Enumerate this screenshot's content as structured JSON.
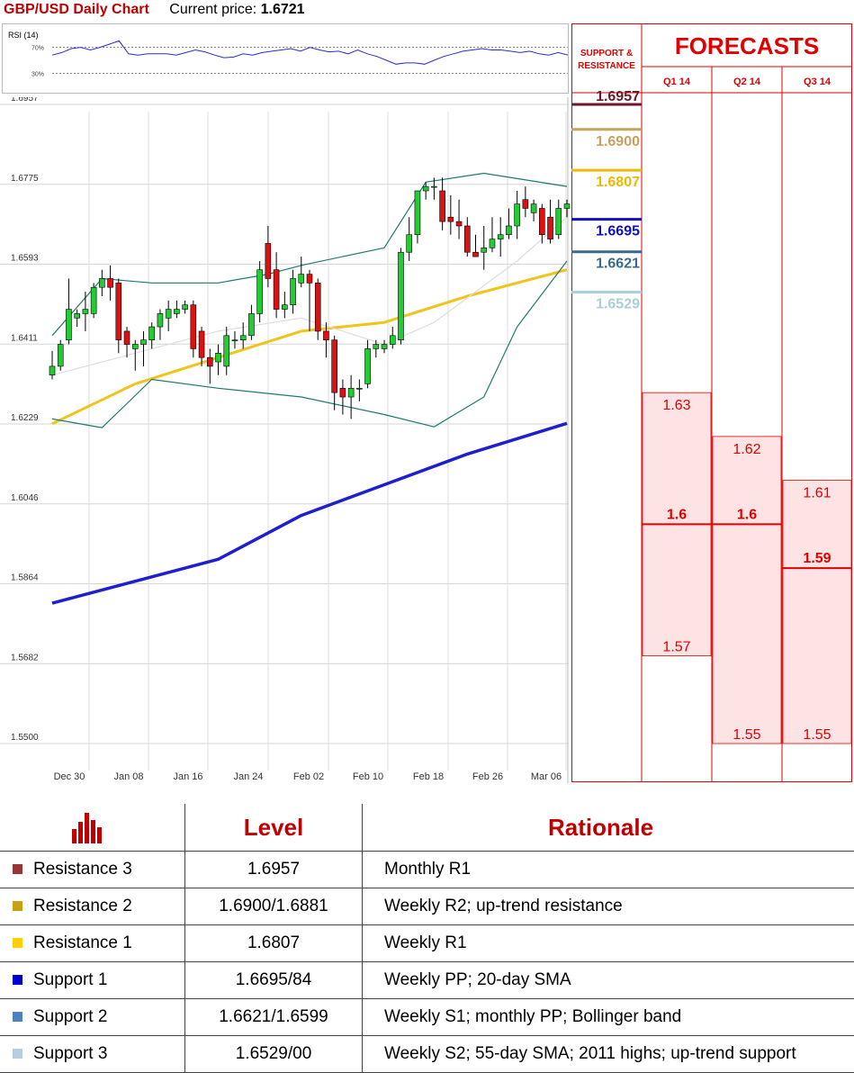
{
  "header": {
    "title": "GBP/USD Daily Chart",
    "current_label": "Current price:",
    "current_value": "1.6721"
  },
  "chart_data": [
    {
      "type": "line",
      "title": "RSI (14)",
      "yticks": [
        "70%",
        "30%"
      ],
      "ylim": [
        0,
        100
      ],
      "x": [
        0,
        1,
        2,
        3,
        4,
        5,
        6,
        7,
        8,
        9,
        10,
        11,
        12,
        13,
        14,
        15,
        16,
        17,
        18,
        19,
        20,
        21,
        22,
        23,
        24,
        25,
        26,
        27,
        28,
        29,
        30,
        31,
        32,
        33,
        34,
        35,
        36,
        37,
        38,
        39,
        40,
        41,
        42,
        43,
        44,
        45,
        46,
        47,
        48,
        49,
        50,
        51,
        52,
        53,
        54
      ],
      "series": [
        {
          "values": [
            58,
            62,
            68,
            70,
            66,
            70,
            75,
            80,
            60,
            58,
            60,
            60,
            60,
            58,
            62,
            66,
            63,
            58,
            54,
            55,
            60,
            58,
            62,
            64,
            66,
            68,
            64,
            70,
            66,
            63,
            64,
            60,
            66,
            60,
            56,
            50,
            44,
            46,
            46,
            44,
            50,
            56,
            60,
            64,
            66,
            68,
            66,
            66,
            64,
            62,
            64,
            60,
            58,
            62,
            58
          ]
        }
      ]
    },
    {
      "type": "candlestick",
      "title": "GBP/USD Daily Chart",
      "x_ticks": [
        "Dec 30",
        "Jan 08",
        "Jan 16",
        "Jan 24",
        "Feb 02",
        "Feb 10",
        "Feb 18",
        "Feb 26",
        "Mar 06"
      ],
      "y_ticks": [
        "1.6957",
        "1.6775",
        "1.6593",
        "1.6411",
        "1.6229",
        "1.6046",
        "1.5864",
        "1.5682",
        "1.5500"
      ],
      "ylim": [
        1.55,
        1.6957
      ],
      "candles": [
        [
          1.634,
          1.6395,
          1.636,
          1.633
        ],
        [
          1.636,
          1.642,
          1.641,
          1.635
        ],
        [
          1.642,
          1.656,
          1.649,
          1.641
        ],
        [
          1.647,
          1.649,
          1.648,
          1.645
        ],
        [
          1.648,
          1.653,
          1.649,
          1.644
        ],
        [
          1.648,
          1.655,
          1.654,
          1.647
        ],
        [
          1.654,
          1.658,
          1.656,
          1.652
        ],
        [
          1.656,
          1.659,
          1.654,
          1.651
        ],
        [
          1.655,
          1.656,
          1.642,
          1.639
        ],
        [
          1.644,
          1.645,
          1.641,
          1.638
        ],
        [
          1.64,
          1.642,
          1.641,
          1.635
        ],
        [
          1.641,
          1.644,
          1.642,
          1.636
        ],
        [
          1.642,
          1.646,
          1.645,
          1.64
        ],
        [
          1.645,
          1.649,
          1.648,
          1.642
        ],
        [
          1.647,
          1.651,
          1.649,
          1.644
        ],
        [
          1.648,
          1.651,
          1.649,
          1.647
        ],
        [
          1.649,
          1.651,
          1.65,
          1.648
        ],
        [
          1.65,
          1.651,
          1.64,
          1.638
        ],
        [
          1.644,
          1.645,
          1.638,
          1.636
        ],
        [
          1.638,
          1.64,
          1.636,
          1.632
        ],
        [
          1.637,
          1.641,
          1.639,
          1.634
        ],
        [
          1.636,
          1.645,
          1.643,
          1.634
        ],
        [
          1.642,
          1.644,
          1.642,
          1.64
        ],
        [
          1.642,
          1.646,
          1.643,
          1.64
        ],
        [
          1.643,
          1.65,
          1.648,
          1.642
        ],
        [
          1.648,
          1.66,
          1.658,
          1.646
        ],
        [
          1.664,
          1.668,
          1.656,
          1.654
        ],
        [
          1.658,
          1.662,
          1.649,
          1.647
        ],
        [
          1.649,
          1.653,
          1.65,
          1.647
        ],
        [
          1.65,
          1.658,
          1.656,
          1.648
        ],
        [
          1.655,
          1.661,
          1.657,
          1.654
        ],
        [
          1.657,
          1.658,
          1.655,
          1.644
        ],
        [
          1.655,
          1.656,
          1.644,
          1.642
        ],
        [
          1.644,
          1.646,
          1.642,
          1.638
        ],
        [
          1.642,
          1.643,
          1.63,
          1.626
        ],
        [
          1.631,
          1.633,
          1.629,
          1.625
        ],
        [
          1.629,
          1.634,
          1.631,
          1.624
        ],
        [
          1.631,
          1.633,
          1.631,
          1.628
        ],
        [
          1.632,
          1.642,
          1.64,
          1.631
        ],
        [
          1.64,
          1.642,
          1.641,
          1.638
        ],
        [
          1.64,
          1.642,
          1.641,
          1.639
        ],
        [
          1.641,
          1.645,
          1.643,
          1.64
        ],
        [
          1.642,
          1.663,
          1.662,
          1.641
        ],
        [
          1.662,
          1.67,
          1.666,
          1.66
        ],
        [
          1.666,
          1.676,
          1.676,
          1.664
        ],
        [
          1.676,
          1.678,
          1.677,
          1.674
        ],
        [
          1.677,
          1.679,
          1.677,
          1.674
        ],
        [
          1.676,
          1.679,
          1.669,
          1.667
        ],
        [
          1.67,
          1.675,
          1.669,
          1.666
        ],
        [
          1.669,
          1.674,
          1.668,
          1.665
        ],
        [
          1.668,
          1.67,
          1.662,
          1.661
        ],
        [
          1.662,
          1.666,
          1.661,
          1.661
        ],
        [
          1.662,
          1.668,
          1.663,
          1.658
        ],
        [
          1.663,
          1.67,
          1.665,
          1.662
        ],
        [
          1.665,
          1.67,
          1.666,
          1.661
        ],
        [
          1.666,
          1.672,
          1.668,
          1.665
        ],
        [
          1.668,
          1.676,
          1.673,
          1.665
        ],
        [
          1.674,
          1.677,
          1.672,
          1.67
        ],
        [
          1.671,
          1.674,
          1.673,
          1.669
        ],
        [
          1.672,
          1.673,
          1.666,
          1.664
        ],
        [
          1.67,
          1.674,
          1.665,
          1.664
        ],
        [
          1.666,
          1.674,
          1.672,
          1.665
        ],
        [
          1.672,
          1.674,
          1.673,
          1.67
        ]
      ],
      "series": [
        {
          "name": "",
          "color": "#f0c419",
          "values": [
            [
              0,
              1.6229
            ],
            [
              10,
              1.632
            ],
            [
              20,
              1.638
            ],
            [
              30,
              1.644
            ],
            [
              40,
              1.646
            ],
            [
              50,
              1.652
            ],
            [
              62,
              1.658
            ]
          ]
        },
        {
          "name": "",
          "color": "#1f1fcf",
          "values": [
            [
              0,
              1.582
            ],
            [
              10,
              1.587
            ],
            [
              20,
              1.592
            ],
            [
              30,
              1.602
            ],
            [
              40,
              1.609
            ],
            [
              50,
              1.616
            ],
            [
              62,
              1.623
            ]
          ]
        },
        {
          "name": "",
          "color": "#1f7a6f",
          "values": [
            [
              0,
              1.624
            ],
            [
              6,
              1.622
            ],
            [
              12,
              1.633
            ],
            [
              20,
              1.631
            ],
            [
              30,
              1.629
            ],
            [
              40,
              1.625
            ],
            [
              46,
              1.6222
            ],
            [
              52,
              1.629
            ],
            [
              56,
              1.645
            ],
            [
              62,
              1.66
            ]
          ]
        },
        {
          "name": "",
          "color": "#1f7a6f",
          "values": [
            [
              0,
              1.643
            ],
            [
              6,
              1.656
            ],
            [
              12,
              1.655
            ],
            [
              20,
              1.655
            ],
            [
              26,
              1.657
            ],
            [
              30,
              1.659
            ],
            [
              40,
              1.663
            ],
            [
              45,
              1.678
            ],
            [
              52,
              1.68
            ],
            [
              62,
              1.677
            ]
          ]
        },
        {
          "name": "",
          "color": "#dddddd",
          "values": [
            [
              0,
              1.634
            ],
            [
              10,
              1.639
            ],
            [
              20,
              1.644
            ],
            [
              30,
              1.647
            ],
            [
              40,
              1.641
            ],
            [
              46,
              1.646
            ],
            [
              56,
              1.66
            ],
            [
              62,
              1.67
            ]
          ]
        }
      ]
    }
  ],
  "levels_panel": {
    "header": "SUPPORT & RESISTANCE",
    "items": [
      {
        "label": "1.6957",
        "value": 1.6957,
        "color": "#6b1a2a"
      },
      {
        "label": "1.6900",
        "value": 1.69,
        "color": "#c8a060"
      },
      {
        "label": "1.6807",
        "value": 1.6807,
        "color": "#f0b800"
      },
      {
        "label": "1.6695",
        "value": 1.6695,
        "color": "#1010c0"
      },
      {
        "label": "1.6621",
        "value": 1.6621,
        "color": "#3a6a8a"
      },
      {
        "label": "1.6529",
        "value": 1.6529,
        "color": "#a9cfd8"
      }
    ]
  },
  "forecasts": {
    "title": "FORECASTS",
    "columns": [
      {
        "label": "Q1 14",
        "high": "1.63",
        "mid": "1.6",
        "low": "1.57",
        "high_v": 1.63,
        "mid_v": 1.6,
        "low_v": 1.57
      },
      {
        "label": "Q2 14",
        "high": "1.62",
        "mid": "1.6",
        "low": "1.55",
        "high_v": 1.62,
        "mid_v": 1.6,
        "low_v": 1.55
      },
      {
        "label": "Q3 14",
        "high": "1.61",
        "mid": "1.59",
        "low": "1.55",
        "high_v": 1.61,
        "mid_v": 1.59,
        "low_v": 1.55
      }
    ]
  },
  "table": {
    "headers": [
      "Level",
      "Rationale"
    ],
    "rows": [
      {
        "name": "Resistance 3",
        "color": "#953735",
        "level": "1.6957",
        "rationale": "Monthly R1"
      },
      {
        "name": "Resistance 2",
        "color": "#c9a012",
        "level": "1.6900/1.6881",
        "rationale": "Weekly R2; up-trend resistance"
      },
      {
        "name": "Resistance 1",
        "color": "#ffd000",
        "level": "1.6807",
        "rationale": "Weekly R1"
      },
      {
        "name": "Support 1",
        "color": "#0000cc",
        "level": "1.6695/84",
        "rationale": "Weekly PP; 20-day SMA"
      },
      {
        "name": "Support 2",
        "color": "#4f81bd",
        "level": "1.6621/1.6599",
        "rationale": "Weekly S1; monthly PP; Bollinger band"
      },
      {
        "name": "Support 3",
        "color": "#b8cce4",
        "level": "1.6529/00",
        "rationale": "Weekly S2; 55-day SMA; 2011 highs; up-trend support"
      }
    ]
  }
}
